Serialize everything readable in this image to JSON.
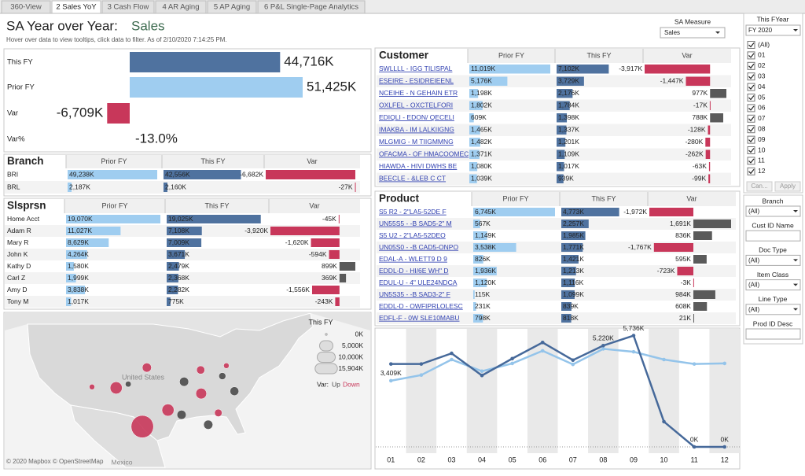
{
  "tabs": [
    "360-View",
    "2 Sales YoY",
    "3 Cash Flow",
    "4 AR Aging",
    "5 AP Aging",
    "6 P&L Single-Page Analytics"
  ],
  "header": {
    "title": "SA Year over Year:",
    "measure": "Sales",
    "subtitle": "Hover over data to view tooltips, click data to filter. As of  2/10/2020 7:14:25 PM."
  },
  "measure_selector": {
    "label": "SA Measure",
    "value": "Sales"
  },
  "colors": {
    "prior": "#9fcdf0",
    "this": "#4f729f",
    "var_down": "#c8375a",
    "var_up": "#5a5a5a"
  },
  "kpi": {
    "rows": [
      {
        "label": "This FY",
        "value": 44716,
        "value_label": "44,716K"
      },
      {
        "label": "Prior FY",
        "value": 51425,
        "value_label": "51,425K"
      },
      {
        "label": "Var",
        "value": -6709,
        "value_label": "-6,709K"
      },
      {
        "label": "Var%",
        "value": -13.0,
        "value_label": "-13.0%"
      }
    ]
  },
  "branch": {
    "columns": [
      "Branch",
      "Prior FY",
      "This FY",
      "Var"
    ],
    "names": [
      "BRI",
      "BRL"
    ],
    "prior": [
      49238,
      2187
    ],
    "prior_labels": [
      "49,238K",
      "2,187K"
    ],
    "this": [
      42556,
      2160
    ],
    "this_labels": [
      "42,556K",
      "2,160K"
    ],
    "var": [
      -6682,
      -27
    ],
    "var_labels": [
      "-6,682K",
      "-27K"
    ]
  },
  "slsprsn": {
    "columns": [
      "Slsprsn",
      "Prior FY",
      "This FY",
      "Var"
    ],
    "names": [
      "Home Acct",
      "Adam R",
      "Mary R",
      "John K",
      "Kathy D",
      "Carl Z",
      "Amy D",
      "Tony M"
    ],
    "prior": [
      19070,
      11027,
      8629,
      4264,
      1580,
      1999,
      3838,
      1017
    ],
    "prior_labels": [
      "19,070K",
      "11,027K",
      "8,629K",
      "4,264K",
      "1,580K",
      "1,999K",
      "3,838K",
      "1,017K"
    ],
    "this": [
      19025,
      7108,
      7009,
      3671,
      2479,
      2368,
      2282,
      775
    ],
    "this_labels": [
      "19,025K",
      "7,108K",
      "7,009K",
      "3,671K",
      "2,479K",
      "2,368K",
      "2,282K",
      "775K"
    ],
    "var": [
      -45,
      -3920,
      -1620,
      -594,
      899,
      369,
      -1556,
      -243
    ],
    "var_labels": [
      "-45K",
      "-3,920K",
      "-1,620K",
      "-594K",
      "899K",
      "369K",
      "-1,556K",
      "-243K"
    ]
  },
  "customer": {
    "columns": [
      "Customer",
      "Prior FY",
      "This FY",
      "Var"
    ],
    "names": [
      "SWLLLL - IGG TILISPAL",
      "ESEIRE - ESIDREIEENL",
      "NCEIHE - N GEHAIN ETR",
      "OXLFEL - OXCTELFORI",
      "EDIQLI - EDON/ QECELI",
      "IMAKBA - IM LALKIIGNG",
      "MLGMIG - M TIIGMMNG",
      "OFACMA - OF HMACOOMEC",
      "HIAWDA - HIVI DWHS BE",
      "BEECLE - &LEB C CT"
    ],
    "prior": [
      11019,
      5176,
      1198,
      1802,
      609,
      1465,
      1482,
      1371,
      1080,
      1039
    ],
    "prior_labels": [
      "11,019K",
      "5,176K",
      "1,198K",
      "1,802K",
      "609K",
      "1,465K",
      "1,482K",
      "1,371K",
      "1,080K",
      "1,039K"
    ],
    "this": [
      7102,
      3729,
      2176,
      1784,
      1398,
      1337,
      1201,
      1109,
      1017,
      939
    ],
    "this_labels": [
      "7,102K",
      "3,729K",
      "2,176K",
      "1,784K",
      "1,398K",
      "1,337K",
      "1,201K",
      "1,109K",
      "1,017K",
      "939K"
    ],
    "var": [
      -3917,
      -1447,
      977,
      -17,
      788,
      -128,
      -280,
      -262,
      -63,
      -99
    ],
    "var_labels": [
      "-3,917K",
      "-1,447K",
      "977K",
      "-17K",
      "788K",
      "-128K",
      "-280K",
      "-262K",
      "-63K",
      "-99K"
    ]
  },
  "product": {
    "columns": [
      "Product",
      "Prior FY",
      "This FY",
      "Var"
    ],
    "names": [
      "S5 R2 - 2\"LA5-52DE F",
      "UN55S5 - -B SAD5-2\" M",
      "S5 U2 - 2\"LA5-52DEO",
      "UN05S0 - -B CAD5-ONPO",
      "EDAL-A - WLETT9 D 9",
      "EDDL-D - HI/6E WH\" D",
      "EDUL-U - 4\" ULE24NDCA",
      "UN5S35 - -B SAD3-2\" F",
      "EDDL-D - OWFIPRLOLESC",
      "EDFL-F - 0W SLE10MABU"
    ],
    "prior": [
      6745,
      567,
      1149,
      3538,
      826,
      1936,
      1120,
      115,
      231,
      798
    ],
    "prior_labels": [
      "6,745K",
      "567K",
      "1,149K",
      "3,538K",
      "826K",
      "1,936K",
      "1,120K",
      "115K",
      "231K",
      "798K"
    ],
    "this": [
      4773,
      2257,
      1985,
      1771,
      1421,
      1213,
      1116,
      1099,
      839,
      818
    ],
    "this_labels": [
      "4,773K",
      "2,257K",
      "1,985K",
      "1,771K",
      "1,421K",
      "1,213K",
      "1,116K",
      "1,099K",
      "839K",
      "818K"
    ],
    "var": [
      -1972,
      1691,
      836,
      -1767,
      595,
      -723,
      -3,
      984,
      608,
      21
    ],
    "var_labels": [
      "-1,972K",
      "1,691K",
      "836K",
      "-1,767K",
      "595K",
      "-723K",
      "-3K",
      "984K",
      "608K",
      "21K"
    ]
  },
  "map": {
    "legend_title": "This FY",
    "size_legend": [
      {
        "value": 0,
        "label": "0K"
      },
      {
        "value": 5000,
        "label": "5,000K"
      },
      {
        "value": 10000,
        "label": "10,000K"
      },
      {
        "value": 15904,
        "label": "15,904K"
      }
    ],
    "var_label": "Var:",
    "series": [
      {
        "name": "Up",
        "color": "#4a4a4a",
        "lon": [
          -93.1,
          -93.6,
          -88.3,
          -104.2,
          -83.1,
          -85.5
        ],
        "lat": [
          37.3,
          30.3,
          28.2,
          36.8,
          35.3,
          38.5
        ],
        "values": [
          2000,
          2000,
          2000,
          600,
          1800,
          1000
        ]
      },
      {
        "name": "Down",
        "color": "#c8375a",
        "lon": [
          -101.4,
          -96.3,
          -106.6,
          -100.5,
          -89.7,
          -89.8,
          -111.4,
          -84.7,
          -86.3
        ],
        "lat": [
          27.8,
          31.3,
          36.0,
          40.3,
          34.8,
          39.8,
          36.2,
          40.7,
          30.7
        ],
        "values": [
          15904,
          4000,
          4000,
          2000,
          3000,
          1500,
          500,
          500,
          1200
        ]
      }
    ],
    "places": [
      "United States",
      "Mexico"
    ],
    "attribution": "© 2020 Mapbox © OpenStreetMap"
  },
  "chart_data": {
    "type": "line",
    "categories": [
      "01",
      "02",
      "03",
      "04",
      "05",
      "06",
      "07",
      "08",
      "09",
      "10",
      "11",
      "12"
    ],
    "series": [
      {
        "color": "#94c4ea",
        "values": [
          3409,
          3700,
          4500,
          3900,
          4300,
          4950,
          4250,
          5050,
          4900,
          4500,
          4270,
          4300
        ],
        "value_labels": [
          "3,409K",
          null,
          null,
          null,
          null,
          null,
          null,
          null,
          null,
          null,
          null,
          null
        ]
      },
      {
        "color": "#46699a",
        "values": [
          4270,
          4270,
          4820,
          3680,
          4550,
          5380,
          4470,
          5220,
          5736,
          1300,
          0,
          0
        ],
        "value_labels": [
          null,
          null,
          null,
          null,
          null,
          null,
          null,
          "5,220K",
          "5,736K",
          null,
          "0K",
          "0K"
        ]
      }
    ],
    "ylim": [
      0,
      6000
    ]
  },
  "filters": {
    "fyear": {
      "title": "This FYear",
      "value": "FY 2020",
      "options": [
        "(All)",
        "01",
        "02",
        "03",
        "04",
        "05",
        "06",
        "07",
        "08",
        "09",
        "10",
        "11",
        "12"
      ],
      "buttons": [
        "Can...",
        "Apply"
      ]
    },
    "others": [
      {
        "label": "Branch",
        "value": "(All)"
      },
      {
        "label": "Cust ID Name"
      },
      {
        "label": "Doc Type",
        "value": "(All)"
      },
      {
        "label": "Item Class",
        "value": "(All)"
      },
      {
        "label": "Line Type",
        "value": "(All)"
      },
      {
        "label": "Prod ID Desc"
      }
    ]
  }
}
